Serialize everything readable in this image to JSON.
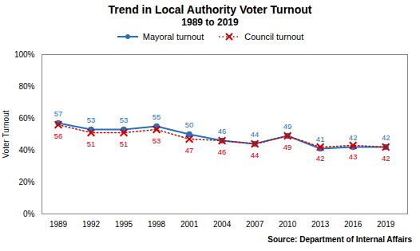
{
  "chart_data": {
    "type": "line",
    "title": "Trend in Local Authority Voter Turnout",
    "subtitle": "1989 to 2019",
    "ylabel": "Voter Turnout",
    "source": "Source: Department of Internal Affairs",
    "x": [
      1989,
      1992,
      1995,
      1998,
      2001,
      2004,
      2007,
      2010,
      2013,
      2016,
      2019
    ],
    "series": [
      {
        "name": "Mayoral turnout",
        "color": "#2a6fba",
        "marker": "circle",
        "line_style": "solid",
        "values": [
          57,
          53,
          53,
          55,
          50,
          46,
          44,
          49,
          41,
          42,
          42
        ]
      },
      {
        "name": "Council turnout",
        "color": "#cc0000",
        "marker": "x",
        "line_style": "dotted",
        "values": [
          56,
          51,
          51,
          53,
          47,
          46,
          44,
          49,
          42,
          43,
          42
        ]
      }
    ],
    "xlim": [
      1987.5,
      2021
    ],
    "xticks": [
      1989,
      1992,
      1995,
      1998,
      2001,
      2004,
      2007,
      2010,
      2013,
      2016,
      2019
    ],
    "ylim": [
      0,
      100
    ],
    "yticks": [
      {
        "value": 0,
        "label": "0%"
      },
      {
        "value": 20,
        "label": "20%"
      },
      {
        "value": 40,
        "label": "40%"
      },
      {
        "value": 60,
        "label": "60%"
      },
      {
        "value": 80,
        "label": "80%"
      },
      {
        "value": 100,
        "label": "100%"
      }
    ],
    "data_labels": true,
    "legend": "top",
    "grid": false
  }
}
